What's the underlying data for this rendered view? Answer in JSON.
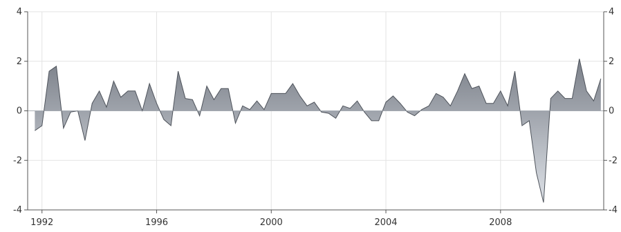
{
  "chart_data": {
    "type": "area",
    "title": "",
    "xlabel": "",
    "ylabel": "",
    "xlim": [
      1991.5,
      2011.6
    ],
    "ylim": [
      -4,
      4
    ],
    "x_ticks": [
      1992,
      1996,
      2000,
      2004,
      2008
    ],
    "x_tick_labels": [
      "1992",
      "1996",
      "2000",
      "2004",
      "2008"
    ],
    "y_ticks": [
      4,
      2,
      0,
      -2,
      -4
    ],
    "y_tick_labels": [
      "4",
      "2",
      "0",
      "-2",
      "-4"
    ],
    "right_y_tick_labels": [
      "4",
      "2",
      "0",
      "-2",
      "-4"
    ],
    "grid": true,
    "baseline": 0,
    "series": [
      {
        "x": [
          1991.75,
          1992.0,
          1992.25,
          1992.5,
          1992.75,
          1993.0,
          1993.25,
          1993.5,
          1993.75,
          1994.0,
          1994.25,
          1994.5,
          1994.75,
          1995.0,
          1995.25,
          1995.5,
          1995.75,
          1996.0,
          1996.25,
          1996.5,
          1996.75,
          1997.0,
          1997.25,
          1997.5,
          1997.75,
          1998.0,
          1998.25,
          1998.5,
          1998.75,
          1999.0,
          1999.25,
          1999.5,
          1999.75,
          2000.0,
          2000.25,
          2000.5,
          2000.75,
          2001.0,
          2001.25,
          2001.5,
          2001.75,
          2002.0,
          2002.25,
          2002.5,
          2002.75,
          2003.0,
          2003.25,
          2003.5,
          2003.75,
          2004.0,
          2004.25,
          2004.5,
          2004.75,
          2005.0,
          2005.25,
          2005.5,
          2005.75,
          2006.0,
          2006.25,
          2006.5,
          2006.75,
          2007.0,
          2007.25,
          2007.5,
          2007.75,
          2008.0,
          2008.25,
          2008.5,
          2008.75,
          2009.0,
          2009.25,
          2009.5,
          2009.75,
          2010.0,
          2010.25,
          2010.5,
          2010.75,
          2011.0,
          2011.25,
          2011.5
        ],
        "values": [
          -0.8,
          -0.6,
          1.6,
          1.8,
          -0.7,
          -0.05,
          0.0,
          -1.2,
          0.3,
          0.8,
          0.15,
          1.2,
          0.55,
          0.8,
          0.8,
          0.0,
          1.1,
          0.3,
          -0.35,
          -0.6,
          1.6,
          0.5,
          0.45,
          -0.2,
          1.0,
          0.45,
          0.9,
          0.9,
          -0.5,
          0.2,
          0.05,
          0.4,
          0.05,
          0.7,
          0.7,
          0.7,
          1.1,
          0.6,
          0.2,
          0.35,
          -0.05,
          -0.1,
          -0.3,
          0.2,
          0.1,
          0.4,
          -0.05,
          -0.4,
          -0.4,
          0.35,
          0.6,
          0.3,
          -0.05,
          -0.2,
          0.05,
          0.2,
          0.7,
          0.55,
          0.2,
          0.8,
          1.5,
          0.9,
          1.0,
          0.3,
          0.3,
          0.8,
          0.2,
          1.6,
          -0.6,
          -0.4,
          -2.5,
          -3.7,
          0.5,
          0.8,
          0.5,
          0.5,
          2.1,
          0.8,
          0.4,
          1.3
        ]
      }
    ]
  },
  "colors": {
    "fill_top": "#7b8089",
    "fill_bottom": "#dde1e7",
    "line": "#4d525a",
    "grid": "#e3e3e3",
    "axis": "#555555",
    "text": "#333333"
  }
}
